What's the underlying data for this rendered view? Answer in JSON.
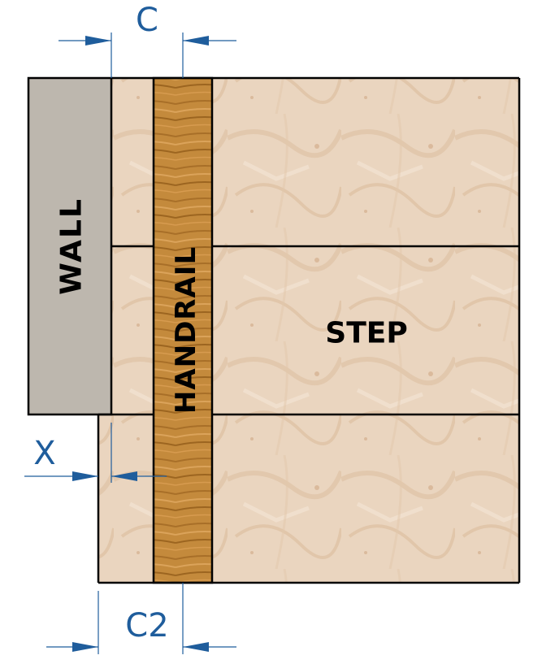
{
  "labels": {
    "wall": "WALL",
    "handrail": "HANDRAIL",
    "step": "STEP"
  },
  "dimensions": {
    "c": "C",
    "x": "X",
    "c2": "C2"
  },
  "colors": {
    "wall_fill": "#bdb7ae",
    "marble_fill": "#e9d3bc",
    "wood_fill": "#c98d3e",
    "outline": "#000000",
    "dimension_line": "#1f5d9c",
    "dimension_text": "#1f5d9c"
  }
}
